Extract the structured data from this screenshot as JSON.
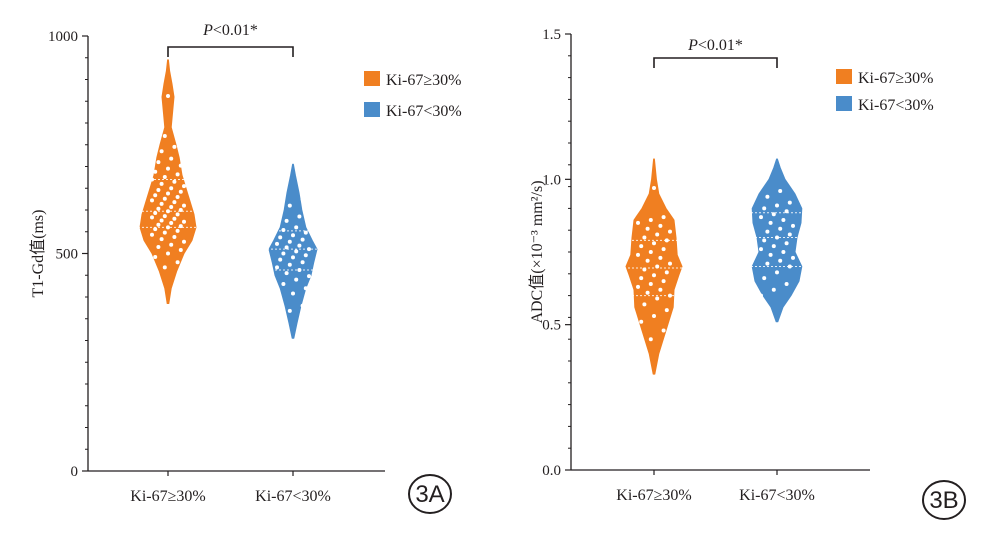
{
  "chart_data": [
    {
      "type": "violin",
      "panel_label": "3A",
      "ylabel": "T1-Gd值(ms)",
      "ylim": [
        0,
        1000
      ],
      "yticks": [
        0,
        500,
        1000
      ],
      "minor_ticks": 20,
      "categories": [
        "Ki-67≥30%",
        "Ki-67<30%"
      ],
      "legend_position": "top-right",
      "significance": {
        "label": "P<0.01*",
        "p_italic": "P",
        "rest": "<0.01*"
      },
      "series": [
        {
          "name": "Ki-67≥30%",
          "color": "#f07f21",
          "ymin": 385,
          "ymax": 945,
          "median": 597,
          "q1": 560,
          "q3": 670,
          "profile": [
            [
              385,
              0.02
            ],
            [
              420,
              0.08
            ],
            [
              460,
              0.22
            ],
            [
              500,
              0.4
            ],
            [
              530,
              0.6
            ],
            [
              560,
              0.7
            ],
            [
              590,
              0.65
            ],
            [
              620,
              0.55
            ],
            [
              650,
              0.45
            ],
            [
              680,
              0.35
            ],
            [
              720,
              0.28
            ],
            [
              750,
              0.2
            ],
            [
              790,
              0.08
            ],
            [
              830,
              0.12
            ],
            [
              860,
              0.15
            ],
            [
              890,
              0.1
            ],
            [
              920,
              0.04
            ],
            [
              945,
              0.01
            ]
          ],
          "points": [
            455,
            468,
            480,
            492,
            500,
            508,
            515,
            520,
            527,
            533,
            538,
            543,
            548,
            552,
            556,
            560,
            563,
            566,
            570,
            573,
            576,
            580,
            583,
            586,
            590,
            593,
            597,
            600,
            603,
            607,
            610,
            614,
            618,
            622,
            626,
            630,
            634,
            638,
            642,
            646,
            650,
            655,
            660,
            665,
            670,
            676,
            682,
            688,
            695,
            702,
            710,
            718,
            726,
            735,
            745,
            755,
            770,
            790,
            850,
            862,
            875,
            887
          ]
        },
        {
          "name": "Ki-67<30%",
          "color": "#4a8cca",
          "ymin": 305,
          "ymax": 705,
          "median": 510,
          "q1": 462,
          "q3": 552,
          "profile": [
            [
              305,
              0.02
            ],
            [
              340,
              0.1
            ],
            [
              380,
              0.2
            ],
            [
              420,
              0.32
            ],
            [
              450,
              0.45
            ],
            [
              480,
              0.52
            ],
            [
              510,
              0.6
            ],
            [
              530,
              0.48
            ],
            [
              560,
              0.32
            ],
            [
              600,
              0.22
            ],
            [
              640,
              0.15
            ],
            [
              680,
              0.06
            ],
            [
              705,
              0.01
            ]
          ],
          "points": [
            355,
            368,
            380,
            395,
            408,
            420,
            430,
            440,
            448,
            455,
            462,
            468,
            474,
            480,
            486,
            491,
            496,
            500,
            505,
            510,
            514,
            518,
            522,
            527,
            532,
            537,
            542,
            548,
            554,
            560,
            567,
            575,
            585,
            598,
            610,
            625,
            640
          ]
        }
      ]
    },
    {
      "type": "violin",
      "panel_label": "3B",
      "ylabel": "ADC值(×10⁻³ mm²/s)",
      "ylim": [
        0,
        1.5
      ],
      "yticks": [
        0.0,
        0.5,
        1.0,
        1.5
      ],
      "ytick_labels": [
        "0.0",
        "0.5",
        "1.0",
        "1.5"
      ],
      "minor_ticks": 20,
      "categories": [
        "Ki-67≥30%",
        "Ki-67<30%"
      ],
      "legend_position": "top-right",
      "significance": {
        "label": "P<0.01*",
        "p_italic": "P",
        "rest": "<0.01*"
      },
      "series": [
        {
          "name": "Ki-67≥30%",
          "color": "#f07f21",
          "ymin": 0.33,
          "ymax": 1.07,
          "median": 0.695,
          "q1": 0.6,
          "q3": 0.79,
          "profile": [
            [
              0.33,
              0.02
            ],
            [
              0.4,
              0.12
            ],
            [
              0.48,
              0.3
            ],
            [
              0.56,
              0.48
            ],
            [
              0.62,
              0.5
            ],
            [
              0.67,
              0.62
            ],
            [
              0.7,
              0.7
            ],
            [
              0.74,
              0.58
            ],
            [
              0.8,
              0.55
            ],
            [
              0.86,
              0.5
            ],
            [
              0.9,
              0.3
            ],
            [
              0.95,
              0.12
            ],
            [
              1.0,
              0.06
            ],
            [
              1.07,
              0.01
            ]
          ],
          "points": [
            0.41,
            0.45,
            0.48,
            0.51,
            0.53,
            0.55,
            0.57,
            0.59,
            0.6,
            0.61,
            0.62,
            0.63,
            0.64,
            0.65,
            0.66,
            0.67,
            0.68,
            0.69,
            0.7,
            0.71,
            0.72,
            0.73,
            0.74,
            0.75,
            0.76,
            0.77,
            0.78,
            0.79,
            0.8,
            0.81,
            0.82,
            0.83,
            0.84,
            0.85,
            0.86,
            0.87,
            0.95,
            0.97
          ]
        },
        {
          "name": "Ki-67<30%",
          "color": "#4a8cca",
          "ymin": 0.51,
          "ymax": 1.07,
          "median": 0.8,
          "q1": 0.7,
          "q3": 0.885,
          "profile": [
            [
              0.51,
              0.02
            ],
            [
              0.56,
              0.15
            ],
            [
              0.6,
              0.35
            ],
            [
              0.65,
              0.55
            ],
            [
              0.7,
              0.62
            ],
            [
              0.75,
              0.45
            ],
            [
              0.8,
              0.5
            ],
            [
              0.85,
              0.6
            ],
            [
              0.9,
              0.62
            ],
            [
              0.95,
              0.45
            ],
            [
              1.0,
              0.2
            ],
            [
              1.04,
              0.08
            ],
            [
              1.07,
              0.01
            ]
          ],
          "points": [
            0.6,
            0.62,
            0.64,
            0.66,
            0.68,
            0.7,
            0.71,
            0.72,
            0.73,
            0.74,
            0.75,
            0.76,
            0.77,
            0.78,
            0.79,
            0.8,
            0.81,
            0.82,
            0.83,
            0.84,
            0.85,
            0.86,
            0.87,
            0.88,
            0.89,
            0.9,
            0.91,
            0.92,
            0.94,
            0.96,
            0.98
          ]
        }
      ]
    }
  ]
}
